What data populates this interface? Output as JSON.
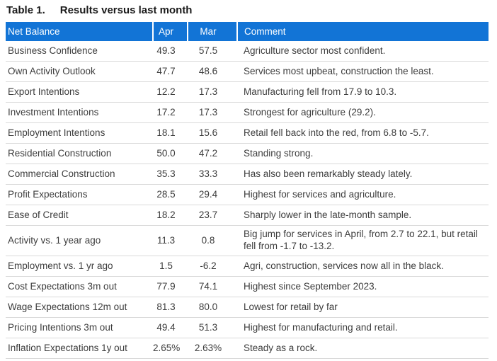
{
  "title": {
    "label": "Table 1.",
    "caption": "Results versus last month"
  },
  "table": {
    "columns": [
      "Net Balance",
      "Apr",
      "Mar",
      "Comment"
    ],
    "rows": [
      {
        "label": "Business Confidence",
        "apr": "49.3",
        "mar": "57.5",
        "comment": "Agriculture sector most confident."
      },
      {
        "label": "Own Activity Outlook",
        "apr": "47.7",
        "mar": "48.6",
        "comment": "Services most upbeat, construction the least."
      },
      {
        "label": "Export Intentions",
        "apr": "12.2",
        "mar": "17.3",
        "comment": "Manufacturing fell from 17.9 to 10.3."
      },
      {
        "label": "Investment Intentions",
        "apr": "17.2",
        "mar": "17.3",
        "comment": "Strongest for agriculture (29.2)."
      },
      {
        "label": "Employment Intentions",
        "apr": "18.1",
        "mar": "15.6",
        "comment": "Retail fell back into the red, from 6.8 to -5.7."
      },
      {
        "label": "Residential Construction",
        "apr": "50.0",
        "mar": "47.2",
        "comment": "Standing strong."
      },
      {
        "label": "Commercial Construction",
        "apr": "35.3",
        "mar": "33.3",
        "comment": "Has also been remarkably steady lately."
      },
      {
        "label": "Profit Expectations",
        "apr": "28.5",
        "mar": "29.4",
        "comment": "Highest for services and agriculture."
      },
      {
        "label": "Ease of Credit",
        "apr": "18.2",
        "mar": "23.7",
        "comment": "Sharply lower in the late-month sample."
      },
      {
        "label": "Activity vs. 1 year ago",
        "apr": "11.3",
        "mar": "0.8",
        "comment": "Big jump for services in April, from 2.7 to 22.1, but retail fell from -1.7 to -13.2."
      },
      {
        "label": "Employment vs. 1 yr ago",
        "apr": "1.5",
        "mar": "-6.2",
        "comment": "Agri, construction, services now all in the black."
      },
      {
        "label": "Cost Expectations 3m out",
        "apr": "77.9",
        "mar": "74.1",
        "comment": "Highest since September 2023."
      },
      {
        "label": "Wage Expectations 12m out",
        "apr": "81.3",
        "mar": "80.0",
        "comment": "Lowest for retail by far"
      },
      {
        "label": "Pricing Intentions 3m out",
        "apr": "49.4",
        "mar": "51.3",
        "comment": "Highest for manufacturing and retail."
      },
      {
        "label": "Inflation Expectations 1y out",
        "apr": "2.65%",
        "mar": "2.63%",
        "comment": "Steady as a rock."
      }
    ]
  },
  "colors": {
    "header_bg": "#1274d6",
    "header_text": "#ffffff",
    "body_text": "#3d3d3d",
    "row_border": "#d9d9d9",
    "title_text": "#1a1a1a"
  }
}
